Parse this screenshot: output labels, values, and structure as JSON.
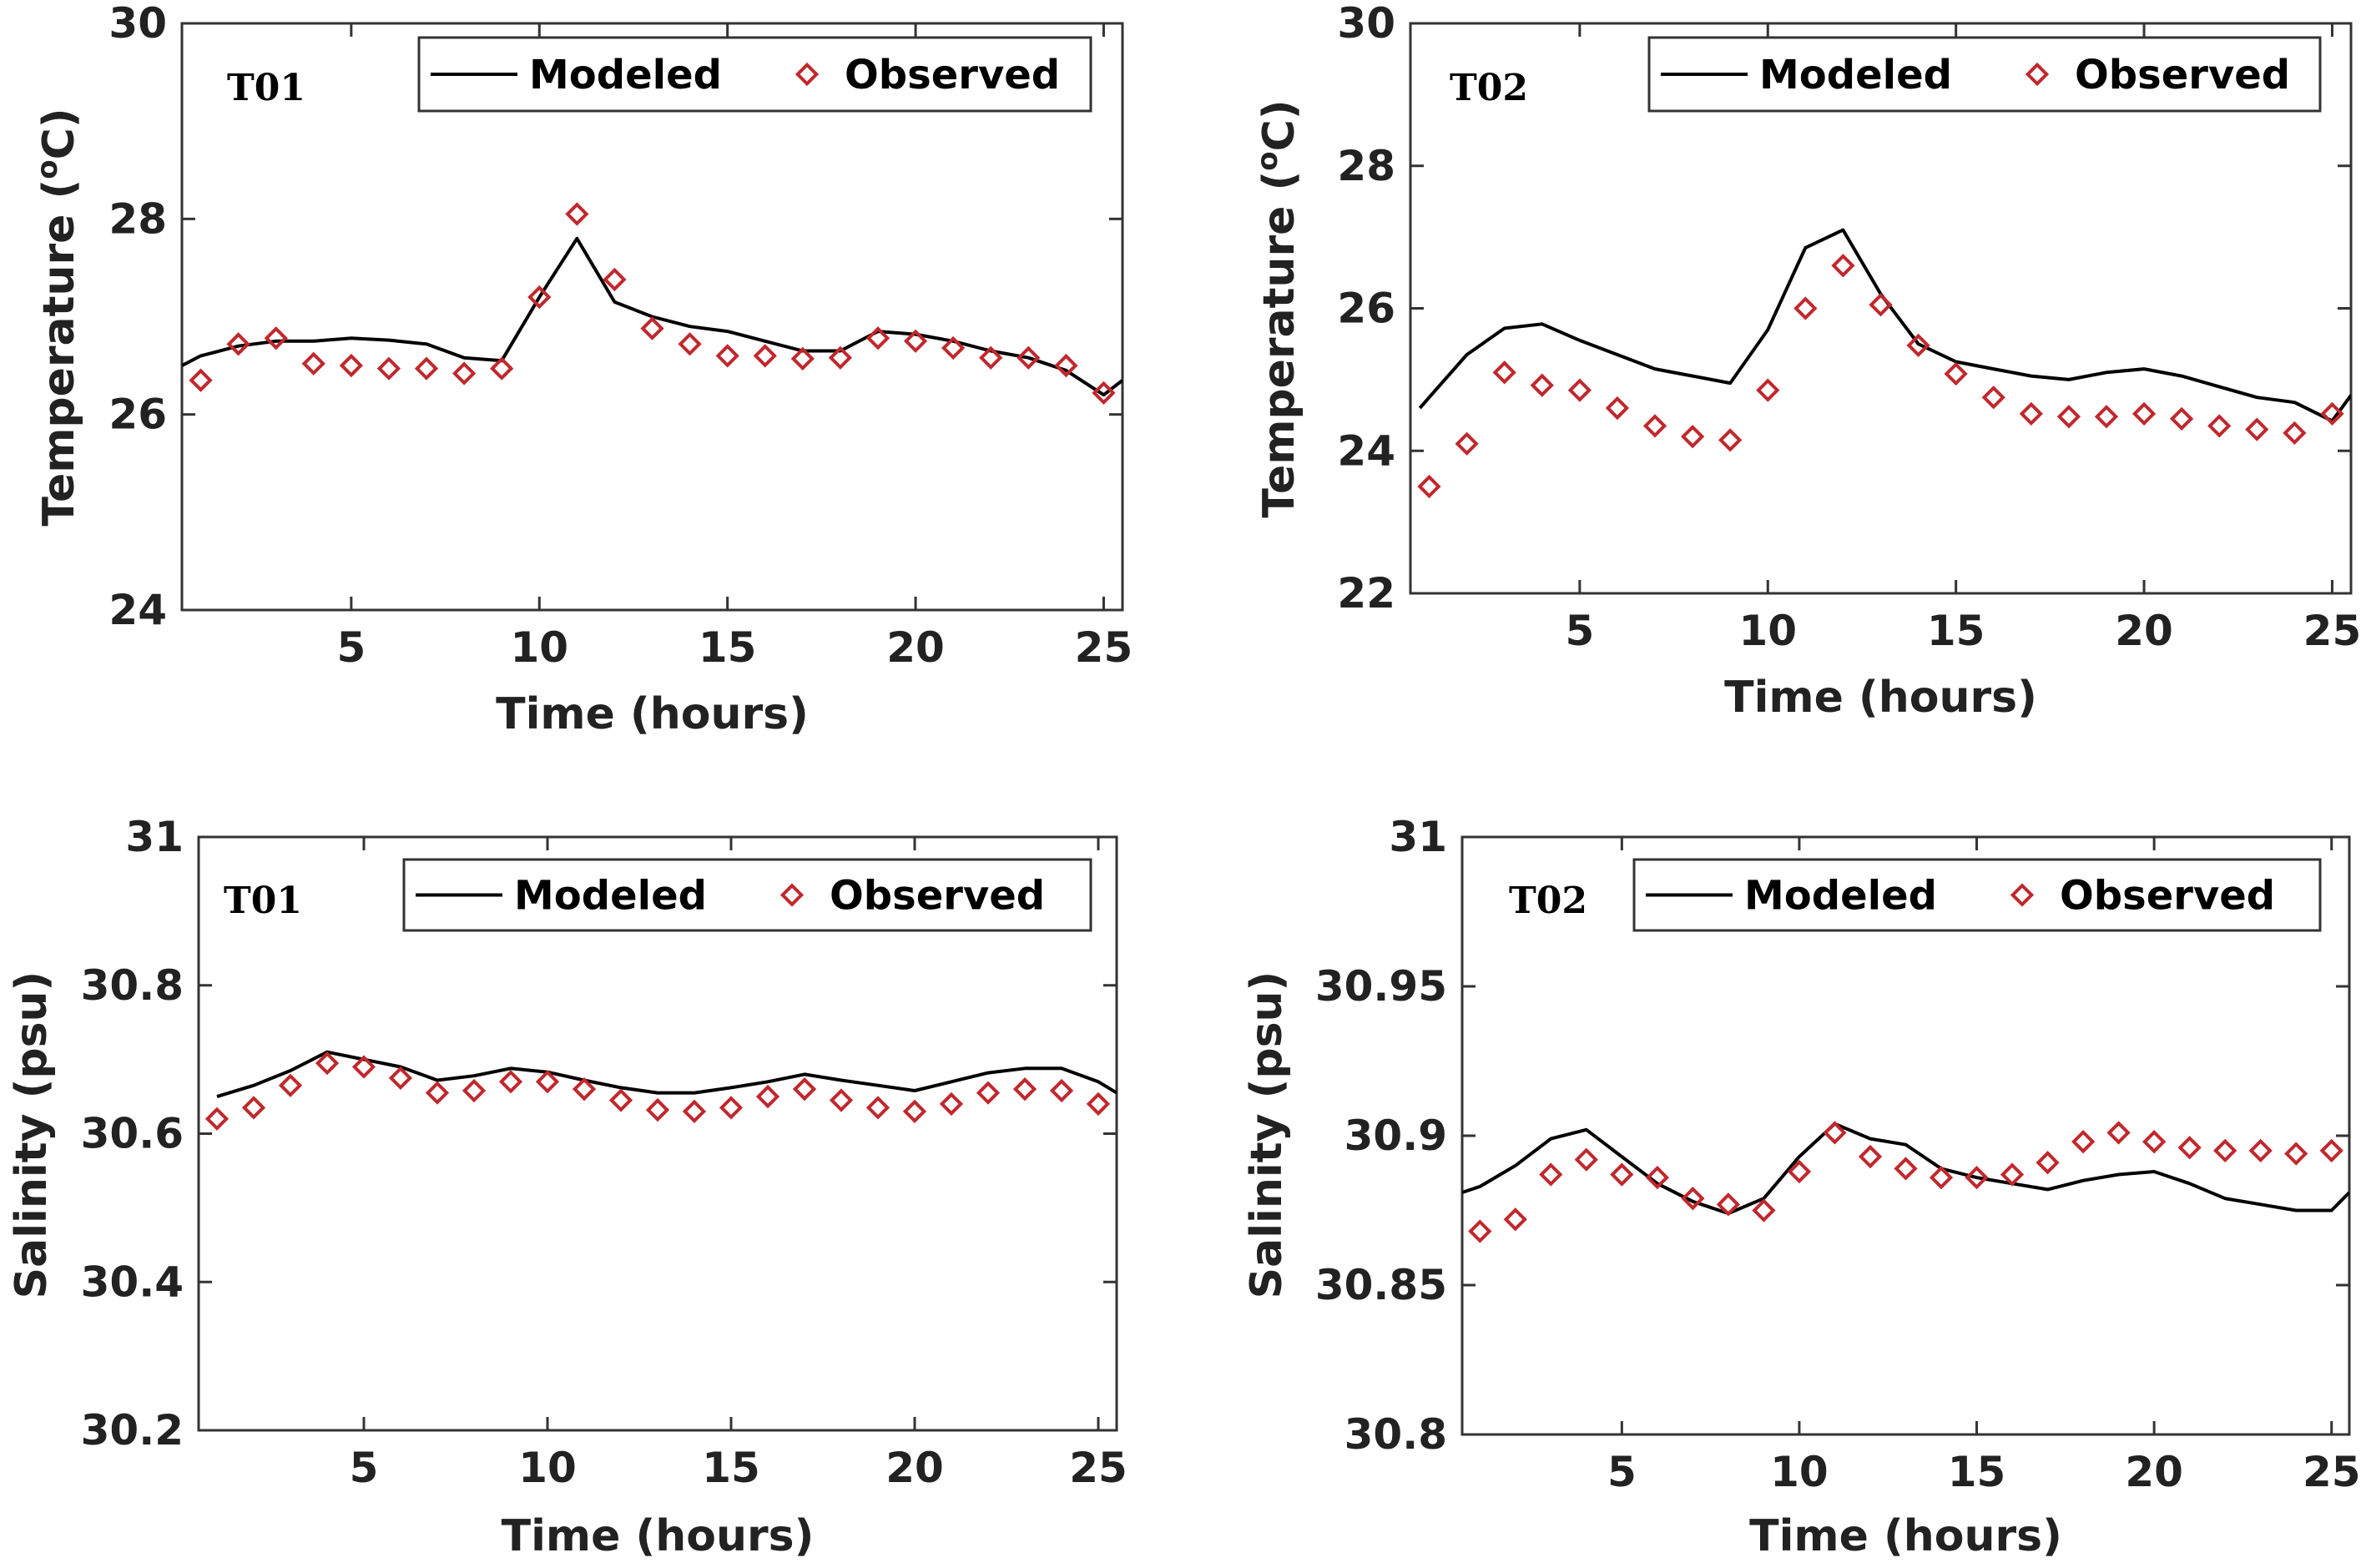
{
  "figure": {
    "modeled_color": "#000000",
    "observed_color": "#c0282d"
  },
  "chart_data": [
    {
      "type": "line",
      "panel": "T01",
      "title": "",
      "xlabel": "Time (hours)",
      "ylabel": "Temperature (°C)",
      "ylabel_main": "Temperature (",
      "ylabel_sup": "o",
      "ylabel_tail": "C)",
      "xlim": [
        0.5,
        25.5
      ],
      "ylim": [
        24,
        30
      ],
      "xticks": [
        5,
        10,
        15,
        20,
        25
      ],
      "yticks": [
        24,
        26,
        28,
        30
      ],
      "xtick_labels": [
        "5",
        "10",
        "15",
        "20",
        "25"
      ],
      "ytick_labels": [
        "24",
        "26",
        "28",
        "30"
      ],
      "legend": [
        "Modeled",
        "Observed"
      ],
      "legend_loc": "top-right",
      "series": [
        {
          "name": "Modeled",
          "style": "line",
          "x": [
            0.5,
            1,
            2,
            3,
            4,
            5,
            6,
            7,
            8,
            9,
            10,
            11,
            12,
            13,
            14,
            15,
            16,
            17,
            18,
            19,
            20,
            21,
            22,
            23,
            24,
            25,
            25.5
          ],
          "values": [
            26.5,
            26.6,
            26.7,
            26.75,
            26.75,
            26.78,
            26.76,
            26.72,
            26.58,
            26.55,
            27.2,
            27.8,
            27.15,
            27.0,
            26.9,
            26.85,
            26.75,
            26.65,
            26.65,
            26.85,
            26.82,
            26.75,
            26.65,
            26.58,
            26.45,
            26.2,
            26.35
          ]
        },
        {
          "name": "Observed",
          "style": "marker",
          "x": [
            1,
            2,
            3,
            4,
            5,
            6,
            7,
            8,
            9,
            10,
            11,
            12,
            13,
            14,
            15,
            16,
            17,
            18,
            19,
            20,
            21,
            22,
            23,
            24,
            25
          ],
          "values": [
            26.35,
            26.72,
            26.78,
            26.52,
            26.5,
            26.47,
            26.47,
            26.42,
            26.47,
            27.2,
            28.05,
            27.38,
            26.88,
            26.72,
            26.6,
            26.6,
            26.57,
            26.58,
            26.78,
            26.75,
            26.68,
            26.58,
            26.58,
            26.5,
            26.22
          ]
        }
      ]
    },
    {
      "type": "line",
      "panel": "T02",
      "title": "",
      "xlabel": "Time (hours)",
      "ylabel": "Temperature (°C)",
      "ylabel_main": "Temperature (",
      "ylabel_sup": "o",
      "ylabel_tail": "C)",
      "xlim": [
        0.5,
        25.5
      ],
      "ylim": [
        22,
        30
      ],
      "xticks": [
        5,
        10,
        15,
        20,
        25
      ],
      "yticks": [
        22,
        24,
        26,
        28,
        30
      ],
      "xtick_labels": [
        "5",
        "10",
        "15",
        "20",
        "25"
      ],
      "ytick_labels": [
        "22",
        "24",
        "26",
        "28",
        "30"
      ],
      "legend": [
        "Modeled",
        "Observed"
      ],
      "legend_loc": "top-right",
      "series": [
        {
          "name": "Modeled",
          "style": "line",
          "x": [
            0.75,
            1,
            2,
            3,
            4,
            5,
            6,
            7,
            8,
            9,
            10,
            11,
            12,
            13,
            14,
            15,
            16,
            17,
            18,
            19,
            20,
            21,
            22,
            23,
            24,
            25,
            25.5
          ],
          "values": [
            24.6,
            24.75,
            25.35,
            25.72,
            25.78,
            25.55,
            25.35,
            25.15,
            25.05,
            24.95,
            25.7,
            26.85,
            27.1,
            26.2,
            25.5,
            25.25,
            25.15,
            25.05,
            25.0,
            25.1,
            25.15,
            25.05,
            24.9,
            24.75,
            24.68,
            24.42,
            24.78
          ]
        },
        {
          "name": "Observed",
          "style": "marker",
          "x": [
            1,
            2,
            3,
            4,
            5,
            6,
            7,
            8,
            9,
            10,
            11,
            12,
            13,
            14,
            15,
            16,
            17,
            18,
            19,
            20,
            21,
            22,
            23,
            24,
            25
          ],
          "values": [
            23.5,
            24.1,
            25.1,
            24.92,
            24.85,
            24.6,
            24.35,
            24.2,
            24.15,
            24.85,
            26.0,
            26.6,
            26.05,
            25.48,
            25.08,
            24.75,
            24.52,
            24.48,
            24.48,
            24.52,
            24.45,
            24.35,
            24.3,
            24.25,
            24.52
          ]
        }
      ]
    },
    {
      "type": "line",
      "panel": "T01",
      "title": "",
      "xlabel": "Time (hours)",
      "ylabel": "Salinity (psu)",
      "xlim": [
        0.5,
        25.5
      ],
      "ylim": [
        30.2,
        31
      ],
      "xticks": [
        5,
        10,
        15,
        20,
        25
      ],
      "yticks": [
        30.2,
        30.4,
        30.6,
        30.8,
        31
      ],
      "xtick_labels": [
        "5",
        "10",
        "15",
        "20",
        "25"
      ],
      "ytick_labels": [
        "30.2",
        "30.4",
        "30.6",
        "30.8",
        "31"
      ],
      "legend": [
        "Modeled",
        "Observed"
      ],
      "legend_loc": "top-right",
      "series": [
        {
          "name": "Modeled",
          "style": "line",
          "x": [
            1,
            2,
            3,
            4,
            5,
            6,
            7,
            8,
            9,
            10,
            11,
            12,
            13,
            14,
            15,
            16,
            17,
            18,
            19,
            20,
            21,
            22,
            23,
            24,
            25,
            25.5
          ],
          "values": [
            30.65,
            30.665,
            30.685,
            30.71,
            30.7,
            30.69,
            30.672,
            30.678,
            30.688,
            30.683,
            30.672,
            30.662,
            30.655,
            30.655,
            30.662,
            30.67,
            30.68,
            30.672,
            30.665,
            30.658,
            30.67,
            30.682,
            30.688,
            30.688,
            30.67,
            30.655
          ]
        },
        {
          "name": "Observed",
          "style": "marker",
          "x": [
            1,
            2,
            3,
            4,
            5,
            6,
            7,
            8,
            9,
            10,
            11,
            12,
            13,
            14,
            15,
            16,
            17,
            18,
            19,
            20,
            21,
            22,
            23,
            24,
            25
          ],
          "values": [
            30.62,
            30.635,
            30.665,
            30.695,
            30.69,
            30.675,
            30.655,
            30.658,
            30.67,
            30.67,
            30.66,
            30.645,
            30.632,
            30.63,
            30.635,
            30.65,
            30.66,
            30.645,
            30.635,
            30.63,
            30.64,
            30.655,
            30.66,
            30.658,
            30.64
          ]
        }
      ]
    },
    {
      "type": "line",
      "panel": "T02",
      "title": "",
      "xlabel": "Time (hours)",
      "ylabel": "Salinity (psu)",
      "xlim": [
        0.5,
        25.5
      ],
      "ylim": [
        30.8,
        31
      ],
      "xticks": [
        5,
        10,
        15,
        20,
        25
      ],
      "yticks": [
        30.8,
        30.85,
        30.9,
        30.95,
        31
      ],
      "xtick_labels": [
        "5",
        "10",
        "15",
        "20",
        "25"
      ],
      "ytick_labels": [
        "30.8",
        "30.85",
        "30.9",
        "30.95",
        "31"
      ],
      "legend": [
        "Modeled",
        "Observed"
      ],
      "legend_loc": "top-right",
      "series": [
        {
          "name": "Modeled",
          "style": "line",
          "x": [
            0.5,
            1,
            2,
            3,
            4,
            5,
            6,
            7,
            8,
            9,
            10,
            11,
            12,
            13,
            14,
            15,
            16,
            17,
            18,
            19,
            20,
            21,
            22,
            23,
            24,
            25,
            25.5
          ],
          "values": [
            30.881,
            30.883,
            30.89,
            30.899,
            30.902,
            30.893,
            30.884,
            30.878,
            30.874,
            30.879,
            30.893,
            30.904,
            30.899,
            30.897,
            30.889,
            30.886,
            30.884,
            30.882,
            30.885,
            30.887,
            30.888,
            30.884,
            30.879,
            30.877,
            30.875,
            30.875,
            30.881
          ]
        },
        {
          "name": "Observed",
          "style": "marker",
          "x": [
            1,
            2,
            3,
            4,
            5,
            6,
            7,
            8,
            9,
            10,
            11,
            12,
            13,
            14,
            15,
            16,
            17,
            18,
            19,
            20,
            21,
            22,
            23,
            24,
            25
          ],
          "values": [
            30.868,
            30.872,
            30.887,
            30.892,
            30.887,
            30.886,
            30.879,
            30.877,
            30.875,
            30.888,
            30.901,
            30.893,
            30.889,
            30.886,
            30.886,
            30.887,
            30.891,
            30.898,
            30.901,
            30.898,
            30.896,
            30.895,
            30.895,
            30.894,
            30.895
          ]
        }
      ]
    }
  ]
}
